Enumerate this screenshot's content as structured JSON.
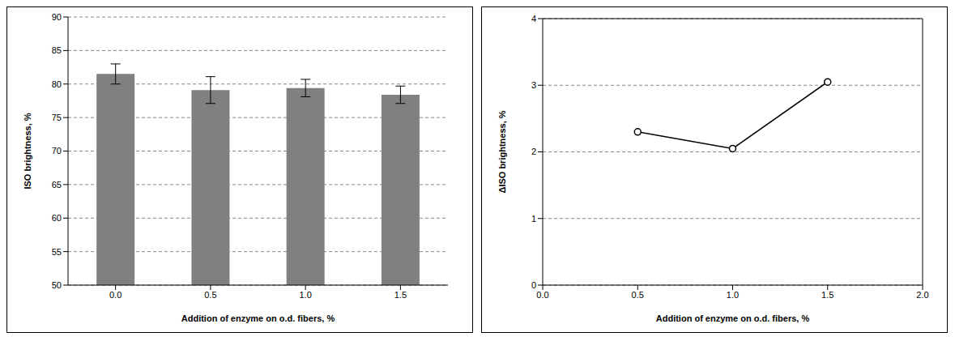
{
  "chart_data": [
    {
      "type": "bar",
      "x_label": "Addition of enzyme on o.d. fibers, %",
      "y_label": "ISO brightness, %",
      "categories": [
        "0.0",
        "0.5",
        "1.0",
        "1.5"
      ],
      "values": [
        81.5,
        79.1,
        79.4,
        78.4
      ],
      "errors": [
        1.5,
        2.0,
        1.3,
        1.3
      ],
      "color": "#808080",
      "ylim": [
        50,
        90
      ],
      "yticks": [
        50,
        55,
        60,
        65,
        70,
        75,
        80,
        85,
        90
      ],
      "grid": true
    },
    {
      "type": "line",
      "x_label": "Addition of enzyme on o.d. fibers, %",
      "y_label": "ΔISO brightness, %",
      "x": [
        0.5,
        1.0,
        1.5
      ],
      "values": [
        2.3,
        2.05,
        3.05
      ],
      "color": "#000000",
      "marker": "circle",
      "xlim": [
        0,
        2
      ],
      "xticks": [
        {
          "value": 0,
          "label": "0.0"
        },
        {
          "value": 0.5,
          "label": "0.5"
        },
        {
          "value": 1,
          "label": "1.0"
        },
        {
          "value": 1.5,
          "label": "1.5"
        },
        {
          "value": 2,
          "label": "2.0"
        }
      ],
      "ylim": [
        0,
        4
      ],
      "yticks": [
        0,
        1,
        2,
        3,
        4
      ],
      "grid": true
    }
  ]
}
